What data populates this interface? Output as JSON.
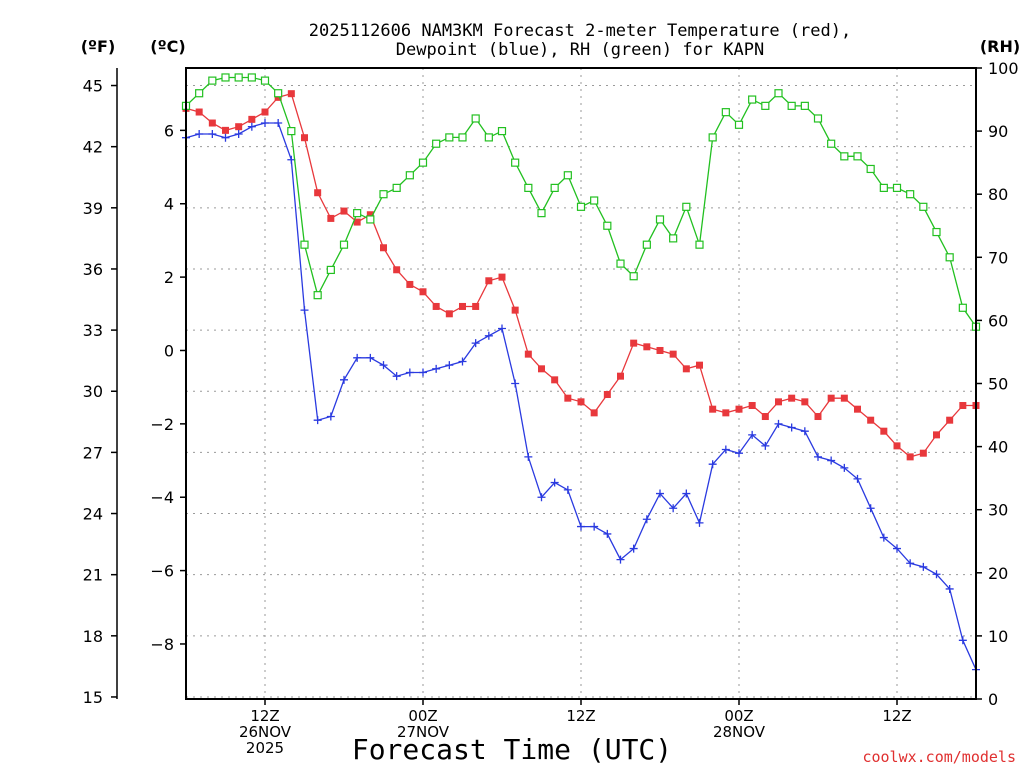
{
  "chart_data": {
    "type": "line",
    "title": [
      "2025112606 NAM3KM Forecast 2-meter Temperature (red),",
      "Dewpoint (blue), RH (green) for KAPN"
    ],
    "units": {
      "fahrenheit": "(ºF)",
      "celsius": "(ºC)",
      "rh": "(RH)"
    },
    "xlabel": "Forecast Time (UTC)",
    "credit": "coolwx.com/models",
    "x_ticks": [
      {
        "hour": 6,
        "lines": [
          "12Z",
          "26NOV",
          "2025"
        ]
      },
      {
        "hour": 18,
        "lines": [
          "00Z",
          "27NOV"
        ]
      },
      {
        "hour": 30,
        "lines": [
          "12Z"
        ]
      },
      {
        "hour": 42,
        "lines": [
          "00Z",
          "28NOV"
        ]
      },
      {
        "hour": 54,
        "lines": [
          "12Z"
        ]
      }
    ],
    "xlim": [
      0,
      60
    ],
    "ylim_celsius": [
      -9.5,
      7.7
    ],
    "ylim_rh": [
      0,
      100
    ],
    "celsius_ticks": [
      "6",
      "4",
      "2",
      "0",
      "−2",
      "−4",
      "−6",
      "−8"
    ],
    "celsius_tick_values": [
      6,
      4,
      2,
      0,
      -2,
      -4,
      -6,
      -8
    ],
    "fahrenheit_ticks": [
      "45",
      "42",
      "39",
      "36",
      "33",
      "30",
      "27",
      "24",
      "21",
      "18",
      "15"
    ],
    "fahrenheit_tick_values": [
      45,
      42,
      39,
      36,
      33,
      30,
      27,
      24,
      21,
      18,
      15
    ],
    "rh_ticks": [
      "100",
      "90",
      "80",
      "70",
      "60",
      "50",
      "40",
      "30",
      "20",
      "10",
      "0"
    ],
    "rh_tick_values": [
      100,
      90,
      80,
      70,
      60,
      50,
      40,
      30,
      20,
      10,
      0
    ],
    "colors": {
      "temperature": "#e8383c",
      "dewpoint": "#2a3ae0",
      "rh": "#22c020"
    },
    "series": [
      {
        "name": "Temperature (°C)",
        "axis": "celsius",
        "marker": "filled-square",
        "values": [
          6.6,
          6.5,
          6.2,
          6.0,
          6.1,
          6.3,
          6.5,
          6.9,
          7.0,
          5.8,
          4.3,
          3.6,
          3.8,
          3.5,
          3.7,
          2.8,
          2.2,
          1.8,
          1.6,
          1.2,
          1.0,
          1.2,
          1.2,
          1.9,
          2.0,
          1.1,
          -0.1,
          -0.5,
          -0.8,
          -1.3,
          -1.4,
          -1.7,
          -1.2,
          -0.7,
          0.2,
          0.1,
          0.0,
          -0.1,
          -0.5,
          -0.4,
          -1.6,
          -1.7,
          -1.6,
          -1.5,
          -1.8,
          -1.4,
          -1.3,
          -1.4,
          -1.8,
          -1.3,
          -1.3,
          -1.6,
          -1.9,
          -2.2,
          -2.6,
          -2.9,
          -2.8,
          -2.3,
          -1.9,
          -1.5,
          -1.5
        ]
      },
      {
        "name": "Dewpoint (°C)",
        "axis": "celsius",
        "marker": "plus",
        "values": [
          5.8,
          5.9,
          5.9,
          5.8,
          5.9,
          6.1,
          6.2,
          6.2,
          5.2,
          1.1,
          -1.9,
          -1.8,
          -0.8,
          -0.2,
          -0.2,
          -0.4,
          -0.7,
          -0.6,
          -0.6,
          -0.5,
          -0.4,
          -0.3,
          0.2,
          0.4,
          0.6,
          -0.9,
          -2.9,
          -4.0,
          -3.6,
          -3.8,
          -4.8,
          -4.8,
          -5.0,
          -5.7,
          -5.4,
          -4.6,
          -3.9,
          -4.3,
          -3.9,
          -4.7,
          -3.1,
          -2.7,
          -2.8,
          -2.3,
          -2.6,
          -2.0,
          -2.1,
          -2.2,
          -2.9,
          -3.0,
          -3.2,
          -3.5,
          -4.3,
          -5.1,
          -5.4,
          -5.8,
          -5.9,
          -6.1,
          -6.5,
          -7.9,
          -8.7
        ]
      },
      {
        "name": "RH (%)",
        "axis": "rh",
        "marker": "open-square",
        "values": [
          94,
          96,
          98,
          98.5,
          98.5,
          98.5,
          98,
          96,
          90,
          72,
          64,
          68,
          72,
          77,
          76,
          80,
          81,
          83,
          85,
          88,
          89,
          89,
          92,
          89,
          90,
          85,
          81,
          77,
          81,
          83,
          78,
          79,
          75,
          69,
          67,
          72,
          76,
          73,
          78,
          72,
          89,
          93,
          91,
          95,
          94,
          96,
          94,
          94,
          92,
          88,
          86,
          86,
          84,
          81,
          81,
          80,
          78,
          74,
          70,
          62,
          59
        ]
      }
    ]
  }
}
